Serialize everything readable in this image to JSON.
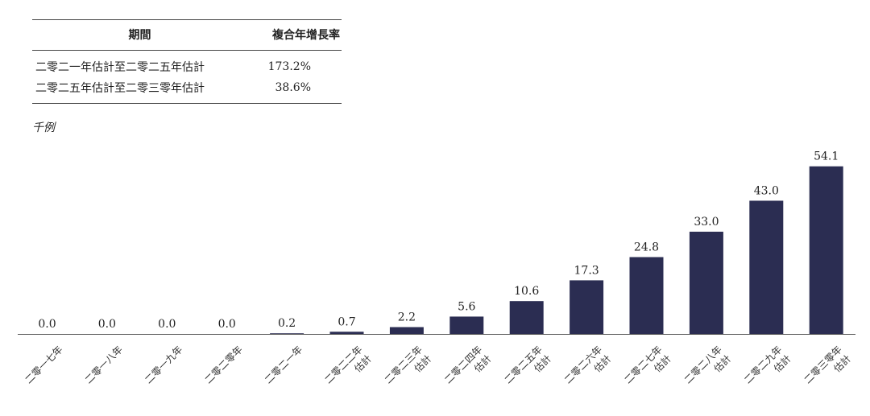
{
  "table": {
    "header_period": "期間",
    "header_rate": "複合年增長率",
    "rows": [
      {
        "period": "二零二一年估計至二零二五年估計",
        "rate": "173.2%"
      },
      {
        "period": "二零二五年估計至二零三零年估計",
        "rate": "38.6%"
      }
    ]
  },
  "chart_data": {
    "type": "bar",
    "unit_label": "千例",
    "categories": [
      [
        "二零一七年"
      ],
      [
        "二零一八年"
      ],
      [
        "二零一九年"
      ],
      [
        "二零二零年"
      ],
      [
        "二零二一年"
      ],
      [
        "二零二二年",
        "估計"
      ],
      [
        "二零二三年",
        "估計"
      ],
      [
        "二零二四年",
        "估計"
      ],
      [
        "二零二五年",
        "估計"
      ],
      [
        "二零二六年",
        "估計"
      ],
      [
        "二零二七年",
        "估計"
      ],
      [
        "二零二八年",
        "估計"
      ],
      [
        "二零二九年",
        "估計"
      ],
      [
        "二零三零年",
        "估計"
      ]
    ],
    "values": [
      0.0,
      0.0,
      0.0,
      0.0,
      0.2,
      0.7,
      2.2,
      5.6,
      10.6,
      17.3,
      24.8,
      33.0,
      43.0,
      54.1
    ],
    "value_labels": [
      "0.0",
      "0.0",
      "0.0",
      "0.0",
      "0.2",
      "0.7",
      "2.2",
      "5.6",
      "10.6",
      "17.3",
      "24.8",
      "33.0",
      "43.0",
      "54.1"
    ],
    "bar_color": "#2b2d52",
    "ylim": [
      0,
      54.1
    ]
  }
}
